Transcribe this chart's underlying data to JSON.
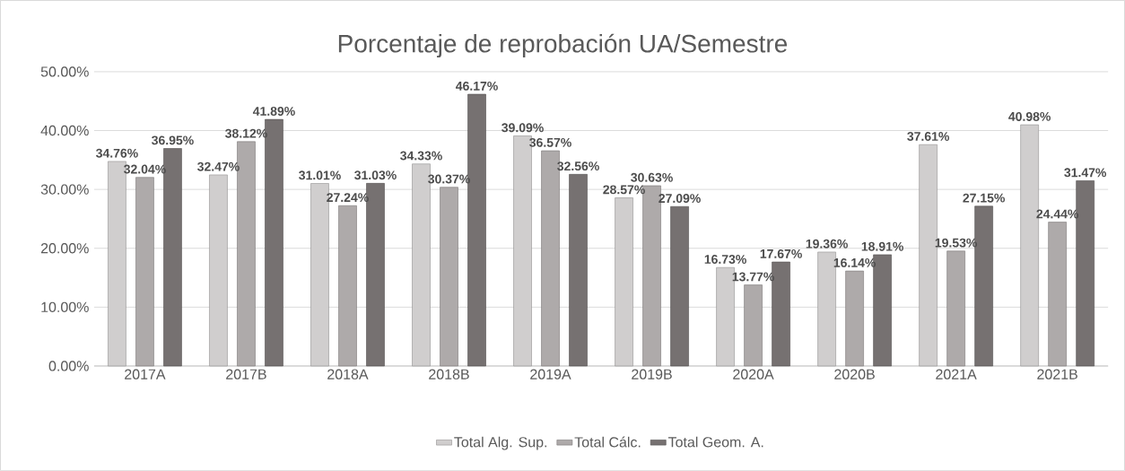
{
  "chart_data": {
    "type": "bar",
    "title": "Porcentaje de reprobación UA/Semestre",
    "categories": [
      "2017A",
      "2017B",
      "2018A",
      "2018B",
      "2019A",
      "2019B",
      "2020A",
      "2020B",
      "2021A",
      "2021B"
    ],
    "series": [
      {
        "name": "Total Alg. Sup.",
        "color": "#d0cece",
        "values": [
          34.76,
          32.47,
          31.01,
          34.33,
          39.09,
          28.57,
          16.73,
          19.36,
          37.61,
          40.98
        ],
        "value_labels": [
          "34.76%",
          "32.47%",
          "31.01%",
          "34.33%",
          "39.09%",
          "28.57%",
          "16.73%",
          "19.36%",
          "37.61%",
          "40.98%"
        ]
      },
      {
        "name": "Total Cálc.",
        "color": "#aeaaaa",
        "values": [
          32.04,
          38.12,
          27.24,
          30.37,
          36.57,
          30.63,
          13.77,
          16.14,
          19.53,
          24.44
        ],
        "value_labels": [
          "32.04%",
          "38.12%",
          "27.24%",
          "30.37%",
          "36.57%",
          "30.63%",
          "13.77%",
          "16.14%",
          "19.53%",
          "24.44%"
        ]
      },
      {
        "name": "Total Geom. A.",
        "color": "#767171",
        "values": [
          36.95,
          41.89,
          31.03,
          46.17,
          32.56,
          27.09,
          17.67,
          18.91,
          27.15,
          31.47
        ],
        "value_labels": [
          "36.95%",
          "41.89%",
          "31.03%",
          "46.17%",
          "32.56%",
          "27.09%",
          "17.67%",
          "18.91%",
          "27.15%",
          "31.47%"
        ]
      }
    ],
    "ylim": [
      0,
      50
    ],
    "yticks": [
      {
        "value": 0,
        "label": "0.00%"
      },
      {
        "value": 10,
        "label": "10.00%"
      },
      {
        "value": 20,
        "label": "20.00%"
      },
      {
        "value": 30,
        "label": "30.00%"
      },
      {
        "value": 40,
        "label": "40.00%"
      },
      {
        "value": 50,
        "label": "50.00%"
      }
    ],
    "grid": "y",
    "legend": "bottom"
  }
}
